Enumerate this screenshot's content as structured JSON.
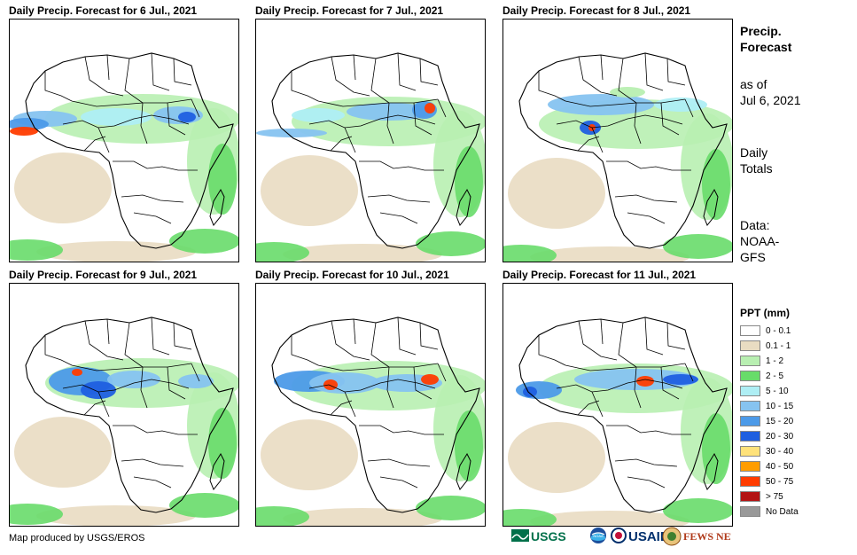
{
  "panels": [
    {
      "title": "Daily Precip. Forecast for 6 Jul., 2021"
    },
    {
      "title": "Daily Precip. Forecast for 7 Jul., 2021"
    },
    {
      "title": "Daily Precip. Forecast for 8 Jul., 2021"
    },
    {
      "title": "Daily Precip. Forecast for 9 Jul., 2021"
    },
    {
      "title": "Daily Precip. Forecast for 10 Jul., 2021"
    },
    {
      "title": "Daily Precip. Forecast for 11 Jul., 2021"
    }
  ],
  "side": {
    "title_line1": "Precip.",
    "title_line2": "Forecast",
    "asof_line1": "as of",
    "asof_line2": "Jul 6, 2021",
    "totals_line1": "Daily",
    "totals_line2": "Totals",
    "source_line1": "Data:",
    "source_line2": "NOAA-",
    "source_line3": "GFS"
  },
  "legend": {
    "title": "PPT (mm)",
    "items": [
      {
        "label": "0 - 0.1",
        "color": "#ffffff"
      },
      {
        "label": "0.1 - 1",
        "color": "#e9dcc2"
      },
      {
        "label": "1 - 2",
        "color": "#b8efb1"
      },
      {
        "label": "2 - 5",
        "color": "#68dc6a"
      },
      {
        "label": "5 - 10",
        "color": "#aeeef4"
      },
      {
        "label": "10 - 15",
        "color": "#86c3f0"
      },
      {
        "label": "15 - 20",
        "color": "#4c9ae8"
      },
      {
        "label": "20 - 30",
        "color": "#1f5fe0"
      },
      {
        "label": "30 - 40",
        "color": "#ffe27a"
      },
      {
        "label": "40 - 50",
        "color": "#ff9d00"
      },
      {
        "label": "50 - 75",
        "color": "#ff3c00"
      },
      {
        "label": "> 75",
        "color": "#b31313"
      },
      {
        "label": "No Data",
        "color": "#999999"
      }
    ]
  },
  "credit": "Map produced by USGS/EROS",
  "logos": [
    {
      "name": "usgs",
      "text": "USGS"
    },
    {
      "name": "noaa",
      "text": "NOAA"
    },
    {
      "name": "usaid",
      "text": "USAID"
    },
    {
      "name": "fewsnet",
      "text": "FEWS NET"
    }
  ]
}
